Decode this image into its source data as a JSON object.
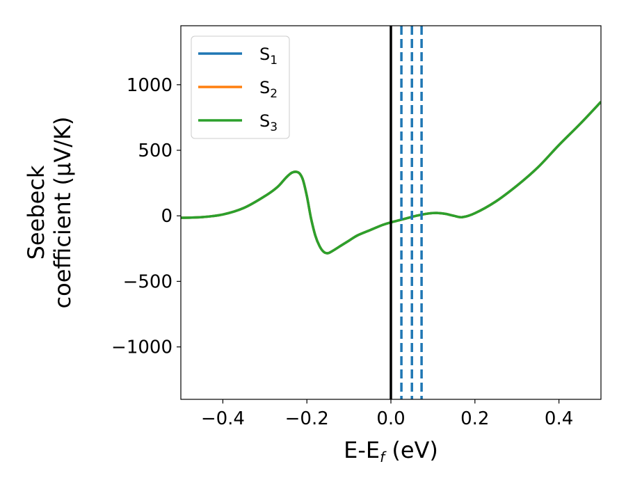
{
  "chart_data": {
    "type": "line",
    "xlabel": {
      "main": "E-E",
      "sub": "f",
      "unit": " (eV)"
    },
    "ylabel": {
      "line1": "Seebeck",
      "line2": "coefficient  (μV/K)"
    },
    "xlim": [
      -0.5,
      0.5
    ],
    "ylim": [
      -1400,
      1450
    ],
    "xticks": [
      -0.4,
      -0.2,
      0.0,
      0.2,
      0.4
    ],
    "xtick_labels": [
      "−0.4",
      "−0.2",
      "0.0",
      "0.2",
      "0.4"
    ],
    "yticks": [
      -1000,
      -500,
      0,
      500,
      1000
    ],
    "ytick_labels": [
      "−1000",
      "−500",
      "0",
      "500",
      "1000"
    ],
    "grid": false,
    "legend_position": "top-left",
    "series": [
      {
        "name": "S",
        "sub": "1",
        "color": "#1f77b4",
        "x": [
          -0.5,
          -0.45,
          -0.4,
          -0.35,
          -0.3,
          -0.27,
          -0.25,
          -0.235,
          -0.22,
          -0.21,
          -0.2,
          -0.19,
          -0.18,
          -0.17,
          -0.16,
          -0.15,
          -0.14,
          -0.12,
          -0.1,
          -0.08,
          -0.05,
          -0.02,
          0.0,
          0.03,
          0.06,
          0.09,
          0.11,
          0.13,
          0.15,
          0.17,
          0.2,
          0.25,
          0.3,
          0.35,
          0.4,
          0.45,
          0.5
        ],
        "y": [
          -15,
          -10,
          10,
          60,
          150,
          220,
          290,
          330,
          330,
          280,
          150,
          -20,
          -150,
          -230,
          -275,
          -285,
          -270,
          -230,
          -190,
          -150,
          -110,
          -70,
          -50,
          -25,
          0,
          18,
          22,
          15,
          0,
          -10,
          20,
          110,
          230,
          370,
          540,
          700,
          870
        ]
      },
      {
        "name": "S",
        "sub": "2",
        "color": "#ff7f0e",
        "x": [
          -0.5,
          -0.45,
          -0.4,
          -0.35,
          -0.3,
          -0.27,
          -0.25,
          -0.235,
          -0.22,
          -0.21,
          -0.2,
          -0.19,
          -0.18,
          -0.17,
          -0.16,
          -0.15,
          -0.14,
          -0.12,
          -0.1,
          -0.08,
          -0.05,
          -0.02,
          0.0,
          0.03,
          0.06,
          0.09,
          0.11,
          0.13,
          0.15,
          0.17,
          0.2,
          0.25,
          0.3,
          0.35,
          0.4,
          0.45,
          0.5
        ],
        "y": [
          -15,
          -10,
          10,
          60,
          150,
          220,
          290,
          330,
          330,
          280,
          150,
          -20,
          -150,
          -230,
          -275,
          -285,
          -270,
          -230,
          -190,
          -150,
          -110,
          -70,
          -50,
          -25,
          0,
          18,
          22,
          15,
          0,
          -10,
          20,
          110,
          230,
          370,
          540,
          700,
          870
        ]
      },
      {
        "name": "S",
        "sub": "3",
        "color": "#2ca02c",
        "x": [
          -0.5,
          -0.45,
          -0.4,
          -0.35,
          -0.3,
          -0.27,
          -0.25,
          -0.235,
          -0.22,
          -0.21,
          -0.2,
          -0.19,
          -0.18,
          -0.17,
          -0.16,
          -0.15,
          -0.14,
          -0.12,
          -0.1,
          -0.08,
          -0.05,
          -0.02,
          0.0,
          0.03,
          0.06,
          0.09,
          0.11,
          0.13,
          0.15,
          0.17,
          0.2,
          0.25,
          0.3,
          0.35,
          0.4,
          0.45,
          0.5
        ],
        "y": [
          -15,
          -10,
          10,
          60,
          150,
          220,
          290,
          330,
          330,
          280,
          150,
          -20,
          -150,
          -230,
          -275,
          -285,
          -270,
          -230,
          -190,
          -150,
          -110,
          -70,
          -50,
          -25,
          0,
          18,
          22,
          15,
          0,
          -10,
          20,
          110,
          230,
          370,
          540,
          700,
          870
        ]
      }
    ],
    "vlines": [
      {
        "x": 0.0,
        "color": "#000000",
        "style": "solid"
      },
      {
        "x": 0.025,
        "color": "#1f77b4",
        "style": "dashed"
      },
      {
        "x": 0.05,
        "color": "#1f77b4",
        "style": "dashed"
      },
      {
        "x": 0.073,
        "color": "#1f77b4",
        "style": "dashed"
      }
    ]
  }
}
